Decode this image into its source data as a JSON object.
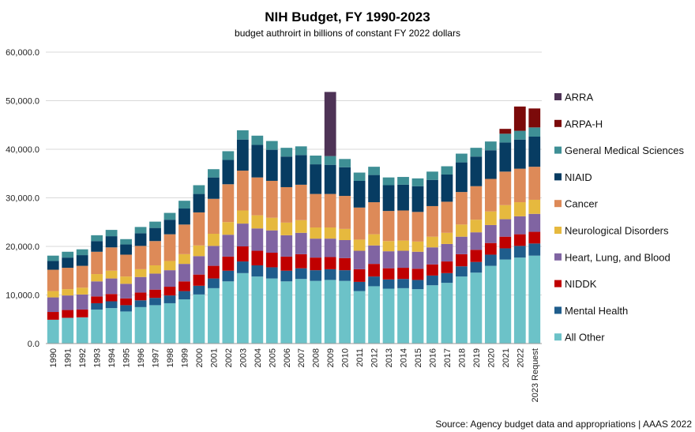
{
  "chart_data": {
    "type": "bar",
    "stacked": true,
    "title": "NIH Budget, FY 1990-2023",
    "subtitle": "budget authroirt in billions of constant FY 2022 dollars",
    "source": "Source: Agency budget data and appropriations | AAAS 2022",
    "ylim": [
      0,
      60000
    ],
    "yticks": [
      "0.0",
      "10,000.0",
      "20,000.0",
      "30,000.0",
      "40,000.0",
      "50,000.0",
      "60,000.0"
    ],
    "grid": true,
    "legend_position": "right",
    "categories": [
      "1990",
      "1991",
      "1992",
      "1993",
      "1994",
      "1995",
      "1996",
      "1997",
      "1998",
      "1999",
      "2000",
      "2001",
      "2002",
      "2003",
      "2004",
      "2005",
      "2006",
      "2007",
      "2008",
      "2009",
      "2010",
      "2011",
      "2012",
      "2013",
      "2014",
      "2015",
      "2016",
      "2017",
      "2018",
      "2019",
      "2020",
      "2021",
      "2022",
      "2023 Request"
    ],
    "series": [
      {
        "name": "All Other",
        "color": "#6cc2c8",
        "values": [
          4900,
          5300,
          5400,
          7000,
          7300,
          6600,
          7500,
          7900,
          8300,
          9100,
          10100,
          11400,
          12800,
          14500,
          13800,
          13400,
          12800,
          13300,
          12900,
          13100,
          12900,
          10800,
          11800,
          11300,
          11400,
          11200,
          12000,
          12500,
          13800,
          14600,
          16000,
          17300,
          17700,
          18100
        ]
      },
      {
        "name": "Mental Health",
        "color": "#1f5d8c",
        "values": [
          0,
          0,
          0,
          1300,
          1400,
          1300,
          1400,
          1500,
          1600,
          1700,
          1800,
          2000,
          2200,
          2400,
          2300,
          2300,
          2200,
          2200,
          2200,
          2200,
          2200,
          1900,
          2000,
          1900,
          1900,
          1900,
          2000,
          2000,
          2100,
          2200,
          2300,
          2300,
          2400,
          2500
        ]
      },
      {
        "name": "NIDDK",
        "color": "#c00000",
        "values": [
          1600,
          1600,
          1600,
          1400,
          1500,
          1400,
          1600,
          1700,
          1800,
          2000,
          2300,
          2600,
          2900,
          3100,
          3000,
          3000,
          2900,
          2900,
          2600,
          2500,
          2500,
          2600,
          2600,
          2300,
          2300,
          2300,
          2300,
          2400,
          2500,
          2500,
          2400,
          2400,
          2400,
          2400
        ]
      },
      {
        "name": "Heart, Lung, and Blood",
        "color": "#8064a2",
        "values": [
          3000,
          3000,
          3100,
          3100,
          3200,
          3000,
          3200,
          3300,
          3400,
          3600,
          3800,
          4100,
          4500,
          4700,
          4600,
          4600,
          4400,
          4400,
          3900,
          3800,
          3700,
          3800,
          3800,
          3500,
          3500,
          3500,
          3500,
          3600,
          3600,
          3600,
          3700,
          3600,
          3700,
          3700
        ]
      },
      {
        "name": "Neurological Disorders",
        "color": "#e6b93e",
        "values": [
          1300,
          1300,
          1400,
          1500,
          1600,
          1500,
          1600,
          1700,
          1900,
          2000,
          2200,
          2500,
          2600,
          2700,
          2700,
          2600,
          2600,
          2600,
          2300,
          2300,
          2300,
          2300,
          2300,
          2100,
          2100,
          2100,
          2200,
          2300,
          2500,
          2600,
          2800,
          2900,
          2900,
          2900
        ]
      },
      {
        "name": "Cancer",
        "color": "#dd8a58",
        "values": [
          4400,
          4400,
          4500,
          4600,
          4800,
          4500,
          4800,
          5000,
          5500,
          6100,
          6800,
          7200,
          7800,
          8200,
          7800,
          7600,
          7300,
          7300,
          6900,
          6900,
          6800,
          6600,
          6600,
          6200,
          6200,
          6100,
          6300,
          6400,
          6700,
          6900,
          6700,
          6900,
          6900,
          6800
        ]
      },
      {
        "name": "NIAID",
        "color": "#073c62",
        "values": [
          1800,
          2100,
          2200,
          2200,
          2300,
          2100,
          2600,
          2700,
          3000,
          3300,
          3800,
          4400,
          5000,
          6400,
          6700,
          6400,
          6300,
          6100,
          6100,
          6000,
          5900,
          5500,
          5600,
          5300,
          5300,
          5300,
          5400,
          5600,
          6100,
          6100,
          5900,
          6000,
          6000,
          6200
        ]
      },
      {
        "name": "General Medical Sciences",
        "color": "#3e8f95",
        "values": [
          1100,
          1200,
          1200,
          1200,
          1300,
          1100,
          1300,
          1300,
          1400,
          1600,
          1800,
          1700,
          1800,
          1900,
          1900,
          1800,
          1800,
          1800,
          1800,
          1800,
          1700,
          1700,
          1700,
          1600,
          1600,
          1600,
          1700,
          1700,
          1800,
          1800,
          1800,
          1800,
          1800,
          1900
        ]
      },
      {
        "name": "ARPA-H",
        "color": "#7b0a0a",
        "values": [
          0,
          0,
          0,
          0,
          0,
          0,
          0,
          0,
          0,
          0,
          0,
          0,
          0,
          0,
          0,
          0,
          0,
          0,
          0,
          0,
          0,
          0,
          0,
          0,
          0,
          0,
          0,
          0,
          0,
          0,
          0,
          1000,
          5000,
          3900
        ]
      },
      {
        "name": "ARRA",
        "color": "#4e3356",
        "values": [
          0,
          0,
          0,
          0,
          0,
          0,
          0,
          0,
          0,
          0,
          0,
          0,
          0,
          0,
          0,
          0,
          0,
          0,
          0,
          13200,
          0,
          0,
          0,
          0,
          0,
          0,
          0,
          0,
          0,
          0,
          0,
          0,
          0,
          0
        ]
      }
    ],
    "legend_order": [
      "ARRA",
      "ARPA-H",
      "General Medical Sciences",
      "NIAID",
      "Cancer",
      "Neurological Disorders",
      "Heart, Lung, and Blood",
      "NIDDK",
      "Mental Health",
      "All Other"
    ]
  }
}
